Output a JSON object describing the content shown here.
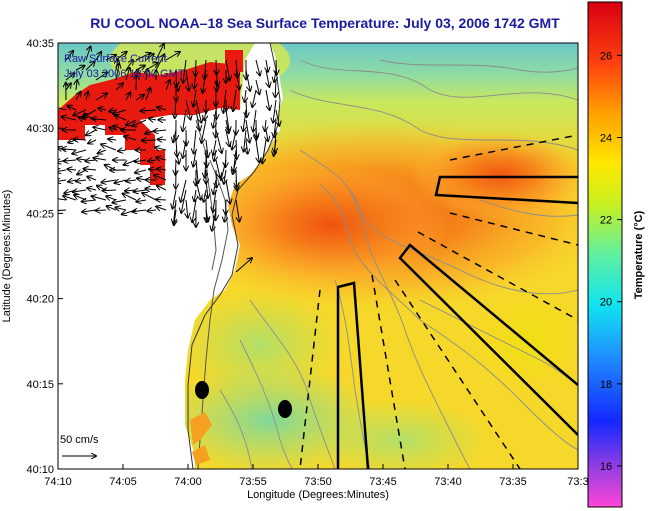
{
  "title": "RU COOL  NOAA–18  Sea Surface Temperature:  July 03, 2006 1742 GMT",
  "legend": {
    "line1": "Raw Surface Current",
    "line2": "July 03 2006 18:00 GMT"
  },
  "scale_label": "50 cm/s",
  "x_axis": {
    "label": "Longitude (Degrees:Minutes)",
    "ticks": [
      "74:10",
      "74:05",
      "74:00",
      "73:55",
      "73:50",
      "73:45",
      "73:40",
      "73:35",
      "73:3"
    ]
  },
  "y_axis": {
    "label": "Latitude (Degrees:Minutes)",
    "ticks": [
      "40:35",
      "40:30",
      "40:25",
      "40:20",
      "40:15",
      "40:10"
    ]
  },
  "colorbar": {
    "label": "Temperature (°C)",
    "ticks": [
      "26",
      "24",
      "22",
      "20",
      "18",
      "16"
    ],
    "min": 15,
    "max": 27.3
  },
  "colors": {
    "title": "#1a1aa0",
    "land": "#ffffff",
    "warm": "#e81a10",
    "cool": "#7ecfc0"
  },
  "markers": [
    "buoy-1",
    "buoy-2"
  ]
}
